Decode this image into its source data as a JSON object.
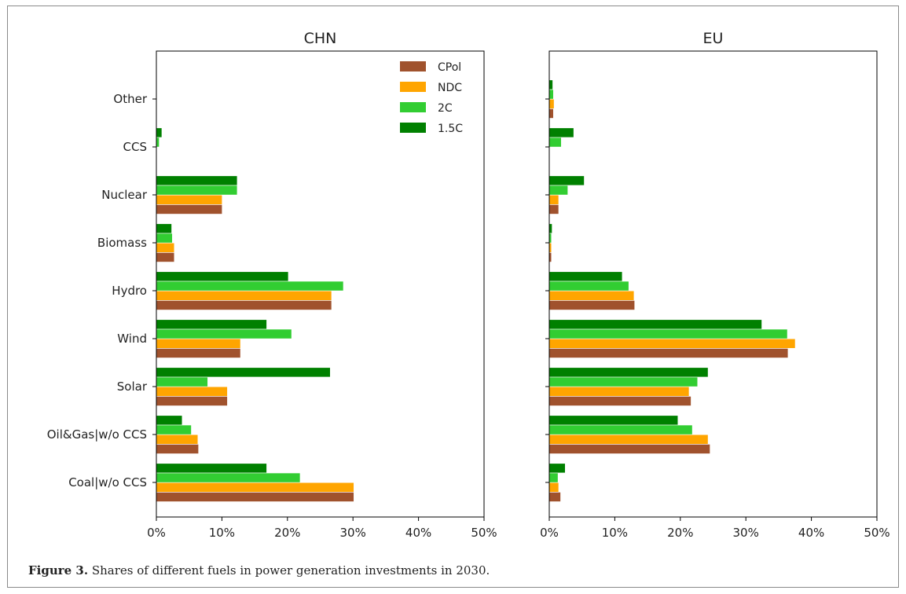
{
  "caption": {
    "label": "Figure 3.",
    "text": " Shares of different fuels in power generation investments in 2030."
  },
  "chart_data": [
    {
      "type": "bar",
      "orientation": "horizontal",
      "title": "CHN",
      "categories": [
        "Coal|w/o CCS",
        "Oil&Gas|w/o CCS",
        "Solar",
        "Wind",
        "Hydro",
        "Biomass",
        "Nuclear",
        "CCS",
        "Other"
      ],
      "xlim": [
        0,
        50
      ],
      "xticks": [
        "0%",
        "10%",
        "20%",
        "30%",
        "40%",
        "50%"
      ],
      "legend": "top-right",
      "series": [
        {
          "name": "CPol",
          "color": "#a0522d",
          "values": [
            30.1,
            6.4,
            10.8,
            12.8,
            26.7,
            2.7,
            10.0,
            0.0,
            0.0
          ]
        },
        {
          "name": "NDC",
          "color": "#ffa500",
          "values": [
            30.1,
            6.3,
            10.8,
            12.8,
            26.7,
            2.7,
            10.0,
            0.0,
            0.0
          ]
        },
        {
          "name": "2C",
          "color": "#32cd32",
          "values": [
            21.9,
            5.3,
            7.8,
            20.6,
            28.5,
            2.4,
            12.3,
            0.4,
            0.0
          ]
        },
        {
          "name": "1.5C",
          "color": "#008000",
          "values": [
            16.8,
            3.9,
            26.5,
            16.8,
            20.1,
            2.3,
            12.3,
            0.8,
            0.0
          ]
        }
      ]
    },
    {
      "type": "bar",
      "orientation": "horizontal",
      "title": "EU",
      "categories": [
        "Coal|w/o CCS",
        "Oil&Gas|w/o CCS",
        "Solar",
        "Wind",
        "Hydro",
        "Biomass",
        "Nuclear",
        "CCS",
        "Other"
      ],
      "xlim": [
        0,
        50
      ],
      "xticks": [
        "0%",
        "10%",
        "20%",
        "30%",
        "40%",
        "50%"
      ],
      "series": [
        {
          "name": "CPol",
          "color": "#a0522d",
          "values": [
            1.7,
            24.5,
            21.6,
            36.4,
            13.0,
            0.3,
            1.4,
            0.0,
            0.6
          ]
        },
        {
          "name": "NDC",
          "color": "#ffa500",
          "values": [
            1.4,
            24.2,
            21.3,
            37.5,
            12.9,
            0.3,
            1.4,
            0.0,
            0.7
          ]
        },
        {
          "name": "2C",
          "color": "#32cd32",
          "values": [
            1.3,
            21.8,
            22.6,
            36.3,
            12.1,
            0.3,
            2.8,
            1.8,
            0.6
          ]
        },
        {
          "name": "1.5C",
          "color": "#008000",
          "values": [
            2.4,
            19.6,
            24.2,
            32.4,
            11.1,
            0.4,
            5.3,
            3.7,
            0.5
          ]
        }
      ]
    }
  ]
}
